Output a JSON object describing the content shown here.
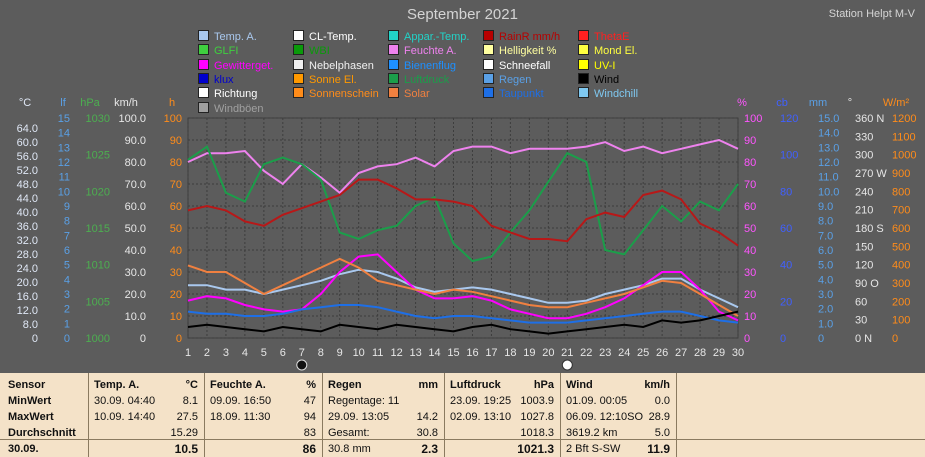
{
  "header": {
    "title": "September 2021",
    "station": "Station Helpt M-V"
  },
  "legend": [
    {
      "label": "Temp. A.",
      "color": "#a9c8ee"
    },
    {
      "label": "CL-Temp.",
      "color": "#ffffff"
    },
    {
      "label": "Appar.-Temp.",
      "color": "#22d3c8"
    },
    {
      "label": "RainR mm/h",
      "color": "#b80000"
    },
    {
      "label": "ThetaE",
      "color": "#ff2020"
    },
    {
      "label": "GLFI",
      "color": "#3fcf3f"
    },
    {
      "label": "WBI",
      "color": "#0a9a0a"
    },
    {
      "label": "Feuchte A.",
      "color": "#ee82ee"
    },
    {
      "label": "Helligkeit %",
      "color": "#ffffa0"
    },
    {
      "label": "Mond El.",
      "color": "#ffff40"
    },
    {
      "label": "Gewitterget.",
      "color": "#ff00ff"
    },
    {
      "label": "Nebelphasen",
      "color": "#f0f0f0"
    },
    {
      "label": "Bienenflug",
      "color": "#1e90ff"
    },
    {
      "label": "Schneefall",
      "color": "#ffffff"
    },
    {
      "label": "UV-I",
      "color": "#ffff00"
    },
    {
      "label": "klux",
      "color": "#0000cc"
    },
    {
      "label": "Sonne El.",
      "color": "#ff9900"
    },
    {
      "label": "Luftdruck",
      "color": "#1b9e4a"
    },
    {
      "label": "Regen",
      "color": "#5aa0e6"
    },
    {
      "label": "Wind",
      "color": "#000000"
    },
    {
      "label": "Richtung",
      "color": "#ffffff"
    },
    {
      "label": "Sonnenschein",
      "color": "#ff8c1a"
    },
    {
      "label": "Solar",
      "color": "#f08040"
    },
    {
      "label": "Taupunkt",
      "color": "#1e6fe6"
    },
    {
      "label": "Windchill",
      "color": "#7fc8f0"
    },
    {
      "label": "Windböen",
      "color": "#a0a0a0"
    }
  ],
  "axes": {
    "units": [
      "°C",
      "hPa",
      "km/h",
      "h",
      "%",
      "cb",
      "mm",
      "°",
      "W/m²"
    ],
    "lf": "lf",
    "temp_ticks": [
      "64.0",
      "60.0",
      "56.0",
      "52.0",
      "48.0",
      "44.0",
      "40.0",
      "36.0",
      "32.0",
      "28.0",
      "24.0",
      "20.0",
      "16.0",
      "12.0",
      "8.0",
      "0"
    ],
    "lf_ticks": [
      "15",
      "14",
      "13",
      "12",
      "11",
      "10",
      "9",
      "8",
      "7",
      "6",
      "5",
      "4",
      "3",
      "2",
      "1",
      "0"
    ],
    "hpa_ticks": [
      "1030",
      "1025",
      "1020",
      "1015",
      "1010",
      "1005",
      "1000"
    ],
    "kmh_ticks": [
      "100.0",
      "90.0",
      "80.0",
      "70.0",
      "60.0",
      "50.0",
      "40.0",
      "30.0",
      "20.0",
      "10.0",
      "0"
    ],
    "h_ticks": [
      "100",
      "90",
      "80",
      "70",
      "60",
      "50",
      "40",
      "30",
      "20",
      "10",
      "0"
    ],
    "pct_ticks": [
      "100",
      "90",
      "80",
      "70",
      "60",
      "50",
      "40",
      "30",
      "20",
      "10",
      "0"
    ],
    "cb_ticks": [
      "120",
      "100",
      "80",
      "60",
      "40",
      "20",
      "0"
    ],
    "mm_ticks": [
      "15.0",
      "14.0",
      "13.0",
      "12.0",
      "11.0",
      "10.0",
      "9.0",
      "8.0",
      "7.0",
      "6.0",
      "5.0",
      "4.0",
      "3.0",
      "2.0",
      "1.0",
      "0"
    ],
    "deg_ticks": [
      "360 N",
      "330",
      "300",
      "270 W",
      "240",
      "210",
      "180 S",
      "150",
      "120",
      "90  O",
      "60",
      "30",
      "0   N"
    ],
    "wm_ticks": [
      "1200",
      "1100",
      "1000",
      "900",
      "800",
      "700",
      "600",
      "500",
      "400",
      "300",
      "200",
      "100",
      "0"
    ],
    "days": [
      "1",
      "2",
      "3",
      "4",
      "5",
      "6",
      "7",
      "8",
      "9",
      "10",
      "11",
      "12",
      "13",
      "14",
      "15",
      "16",
      "17",
      "18",
      "19",
      "20",
      "21",
      "22",
      "23",
      "24",
      "25",
      "26",
      "27",
      "28",
      "29",
      "30"
    ]
  },
  "chart_data": {
    "type": "line",
    "x": [
      1,
      2,
      3,
      4,
      5,
      6,
      7,
      8,
      9,
      10,
      11,
      12,
      13,
      14,
      15,
      16,
      17,
      18,
      19,
      20,
      21,
      22,
      23,
      24,
      25,
      26,
      27,
      28,
      29,
      30
    ],
    "ylim": [
      0,
      100
    ],
    "series": [
      {
        "name": "Feuchte A.",
        "color": "#ee82ee",
        "values": [
          80,
          84,
          84,
          85,
          76,
          70,
          79,
          73,
          66,
          75,
          78,
          79,
          82,
          78,
          85,
          87,
          87,
          84,
          86,
          86,
          86,
          87,
          89,
          85,
          87,
          84,
          86,
          88,
          90,
          86
        ]
      },
      {
        "name": "Luftdruck",
        "color": "#1b9e4a",
        "values": [
          81,
          87,
          66,
          62,
          79,
          82,
          79,
          72,
          48,
          45,
          49,
          51,
          60,
          64,
          43,
          35,
          37,
          48,
          58,
          71,
          84,
          80,
          40,
          38,
          49,
          60,
          53,
          62,
          58,
          70
        ]
      },
      {
        "name": "ThetaE",
        "color": "#b81818",
        "values": [
          58,
          60,
          58,
          53,
          51,
          56,
          59,
          62,
          65,
          72,
          72,
          68,
          63,
          63,
          62,
          60,
          51,
          48,
          45,
          45,
          44,
          54,
          57,
          55,
          65,
          67,
          63,
          52,
          48,
          42
        ]
      },
      {
        "name": "Temp. A.",
        "color": "#a9c8ee",
        "values": [
          24,
          24,
          22,
          22,
          20,
          22,
          24,
          26,
          29,
          31,
          30,
          27,
          23,
          21,
          22,
          23,
          22,
          20,
          18,
          16,
          16,
          17,
          20,
          22,
          24,
          27,
          27,
          22,
          18,
          14
        ]
      },
      {
        "name": "Gewitterget.",
        "color": "#ff00ff",
        "values": [
          17,
          19,
          18,
          15,
          13,
          12,
          13,
          20,
          30,
          37,
          38,
          30,
          22,
          18,
          18,
          19,
          17,
          13,
          11,
          9,
          9,
          11,
          14,
          18,
          24,
          30,
          30,
          22,
          12,
          8
        ]
      },
      {
        "name": "Solar",
        "color": "#f08040",
        "values": [
          33,
          30,
          30,
          25,
          20,
          24,
          28,
          32,
          36,
          32,
          26,
          24,
          22,
          20,
          22,
          21,
          19,
          17,
          15,
          14,
          14,
          16,
          18,
          20,
          23,
          26,
          25,
          20,
          15,
          10
        ]
      },
      {
        "name": "Taupunkt",
        "color": "#1e6fe6",
        "values": [
          12,
          11,
          11,
          10,
          10,
          11,
          13,
          14,
          15,
          15,
          14,
          12,
          10,
          9,
          10,
          10,
          9,
          8,
          7,
          7,
          7,
          8,
          9,
          10,
          11,
          12,
          12,
          10,
          8,
          7
        ]
      },
      {
        "name": "Wind",
        "color": "#000000",
        "values": [
          5,
          6,
          5,
          4,
          3,
          5,
          4,
          3,
          6,
          5,
          4,
          6,
          5,
          4,
          3,
          5,
          6,
          4,
          3,
          2,
          3,
          4,
          5,
          6,
          5,
          8,
          7,
          8,
          10,
          12
        ]
      }
    ]
  },
  "table": {
    "row_labels": [
      "Sensor",
      "MinWert",
      "MaxWert",
      "Durchschnitt",
      "30.09."
    ],
    "columns": [
      {
        "name": "Temp. A.",
        "unit": "°C",
        "rows": [
          [
            "30.09.  04:40",
            "8.1"
          ],
          [
            "10.09.  14:40",
            "27.5"
          ],
          [
            "",
            "15.29"
          ],
          [
            "",
            "10.5"
          ]
        ]
      },
      {
        "name": "Feuchte A.",
        "unit": "%",
        "rows": [
          [
            "09.09.  16:50",
            "47"
          ],
          [
            "18.09.  11:30",
            "94"
          ],
          [
            "",
            "83"
          ],
          [
            "",
            "86"
          ]
        ]
      },
      {
        "name": "Regen",
        "unit": "mm",
        "rows": [
          [
            "Regentage: 11",
            ""
          ],
          [
            "29.09.  13:05",
            "14.2"
          ],
          [
            "Gesamt:",
            "30.8"
          ],
          [
            "30.8 mm",
            "2.3"
          ]
        ]
      },
      {
        "name": "Luftdruck",
        "unit": "hPa",
        "rows": [
          [
            "23.09.  19:25",
            "1003.9"
          ],
          [
            "02.09.  13:10",
            "1027.8"
          ],
          [
            "",
            "1018.3"
          ],
          [
            "",
            "1021.3"
          ]
        ]
      },
      {
        "name": "Wind",
        "unit": "km/h",
        "rows": [
          [
            "01.09.  00:05",
            "0.0"
          ],
          [
            "06.09.  12:10SO",
            "28.9"
          ],
          [
            "3619.2 km",
            "5.0"
          ],
          [
            "2 Bft S-SW",
            "11.9"
          ]
        ]
      }
    ]
  }
}
